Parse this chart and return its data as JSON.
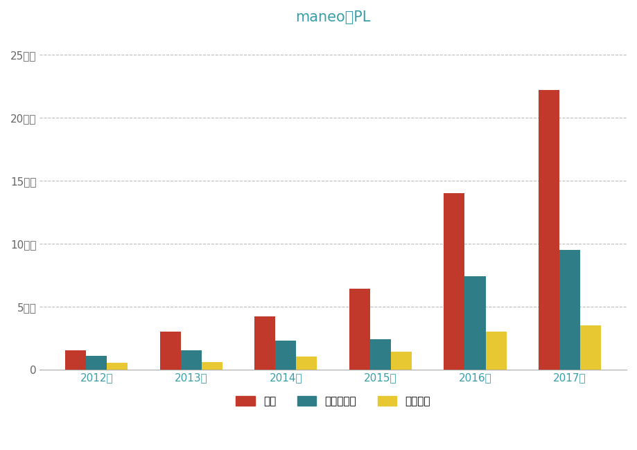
{
  "title": "maneoのPL",
  "title_color": "#3a9eaa",
  "categories": [
    "2012年",
    "2013年",
    "2014年",
    "2015年",
    "2016年",
    "2017年"
  ],
  "series": {
    "売上": [
      1.5,
      3.0,
      4.2,
      6.4,
      14.0,
      22.2
    ],
    "売上総利益": [
      1.1,
      1.5,
      2.3,
      2.4,
      7.4,
      9.5
    ],
    "営業利益": [
      0.5,
      0.6,
      1.0,
      1.4,
      3.0,
      3.5
    ]
  },
  "colors": {
    "売上": "#c0392b",
    "売上総利益": "#2e7d87",
    "営業利益": "#e8c832"
  },
  "yticks": [
    0,
    5,
    10,
    15,
    20,
    25
  ],
  "ytick_labels": [
    "0",
    "5億－",
    "10億－",
    "15億－",
    "20億－",
    "25億－"
  ],
  "ylim": [
    0,
    26.5
  ],
  "background_color": "#ffffff",
  "grid_color": "#bbbbbb",
  "bar_width": 0.22,
  "legend_labels": [
    "売上",
    "売上総利益",
    "営業利益"
  ],
  "legend_colors": [
    "#c0392b",
    "#2e7d87",
    "#e8c832"
  ],
  "x_tick_color": "#3a9eaa",
  "y_tick_color": "#666666"
}
